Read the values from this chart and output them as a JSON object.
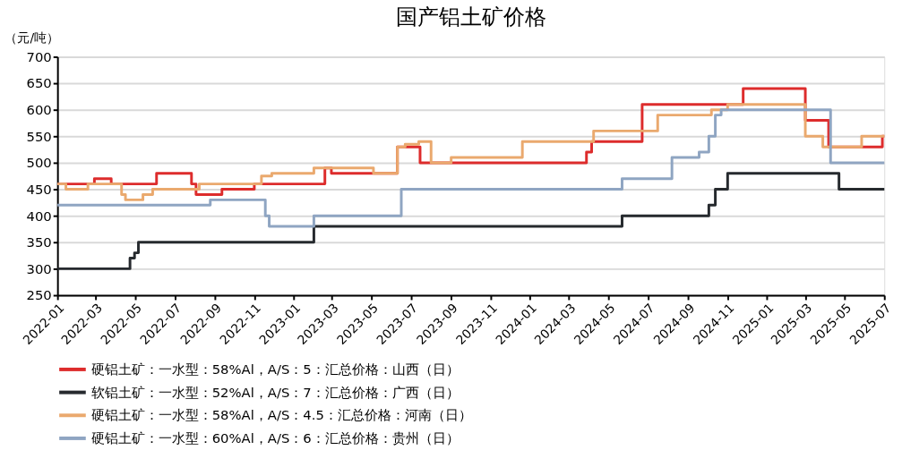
{
  "chart_data": {
    "type": "step",
    "title": "国产铝土矿价格",
    "ylabel": "（元/吨）",
    "xlim": [
      "2022-01-01",
      "2025-07-01"
    ],
    "xticks": [
      "2022-01",
      "2022-03",
      "2022-05",
      "2022-07",
      "2022-09",
      "2022-11",
      "2023-01",
      "2023-03",
      "2023-05",
      "2023-07",
      "2023-09",
      "2023-11",
      "2024-01",
      "2024-03",
      "2024-05",
      "2024-07",
      "2024-09",
      "2024-11",
      "2025-01",
      "2025-03",
      "2025-05",
      "2025-07"
    ],
    "ylim": [
      250,
      700
    ],
    "yticks": [
      250,
      300,
      350,
      400,
      450,
      500,
      550,
      600,
      650,
      700
    ],
    "grid": "y",
    "legend": "bottom",
    "line_style": "solid",
    "marker": "none",
    "series": [
      {
        "name": "硬铝土矿：一水型：58%Al，A/S：5：汇总价格：山西（日）",
        "color": "#dd2c2c",
        "x": [
          "2022-01-01",
          "2022-02-27",
          "2022-03-25",
          "2022-06-03",
          "2022-07-27",
          "2022-08-03",
          "2022-09-12",
          "2022-11-01",
          "2023-02-18",
          "2023-02-28",
          "2023-06-10",
          "2023-07-15",
          "2024-03-28",
          "2024-04-05",
          "2024-06-22",
          "2024-11-25",
          "2025-03-01",
          "2025-04-06",
          "2025-06-28",
          "2025-07-01"
        ],
        "values": [
          460,
          470,
          460,
          480,
          460,
          440,
          450,
          460,
          490,
          480,
          530,
          500,
          520,
          540,
          610,
          640,
          580,
          530,
          550,
          550
        ]
      },
      {
        "name": "软铝土矿：一水型：52%Al，A/S：7：汇总价格：广西（日）",
        "color": "#262a2e",
        "x": [
          "2022-01-01",
          "2022-04-23",
          "2022-04-30",
          "2022-05-06",
          "2023-02-01",
          "2024-05-22",
          "2024-10-03",
          "2024-10-13",
          "2024-11-01",
          "2025-04-22",
          "2025-07-01"
        ],
        "values": [
          300,
          320,
          330,
          350,
          380,
          400,
          420,
          450,
          480,
          450,
          450
        ]
      },
      {
        "name": "硬铝土矿：一水型：58%Al，A/S：4.5：汇总价格：河南（日）",
        "color": "#eaa96e",
        "x": [
          "2022-01-01",
          "2022-01-14",
          "2022-02-17",
          "2022-04-10",
          "2022-04-16",
          "2022-05-13",
          "2022-05-28",
          "2022-08-08",
          "2022-11-12",
          "2022-11-28",
          "2023-02-01",
          "2023-05-04",
          "2023-06-10",
          "2023-06-22",
          "2023-07-13",
          "2023-08-01",
          "2023-09-01",
          "2023-12-20",
          "2024-04-08",
          "2024-07-16",
          "2024-10-07",
          "2024-11-01",
          "2025-03-01",
          "2025-03-28",
          "2025-05-27",
          "2025-07-01"
        ],
        "values": [
          460,
          450,
          460,
          440,
          430,
          440,
          450,
          460,
          475,
          480,
          490,
          480,
          530,
          535,
          540,
          500,
          510,
          540,
          560,
          590,
          600,
          610,
          550,
          530,
          550,
          550
        ]
      },
      {
        "name": "硬铝土矿：一水型：60%Al，A/S：6：汇总价格：贵州（日）",
        "color": "#8fa5c2",
        "x": [
          "2022-01-01",
          "2022-08-25",
          "2022-11-18",
          "2022-11-24",
          "2023-02-01",
          "2023-06-16",
          "2024-05-22",
          "2024-08-07",
          "2024-09-18",
          "2024-10-03",
          "2024-10-13",
          "2024-10-22",
          "2025-04-09",
          "2025-07-01"
        ],
        "values": [
          420,
          430,
          400,
          380,
          400,
          450,
          470,
          510,
          520,
          550,
          590,
          600,
          500,
          500
        ]
      }
    ]
  }
}
